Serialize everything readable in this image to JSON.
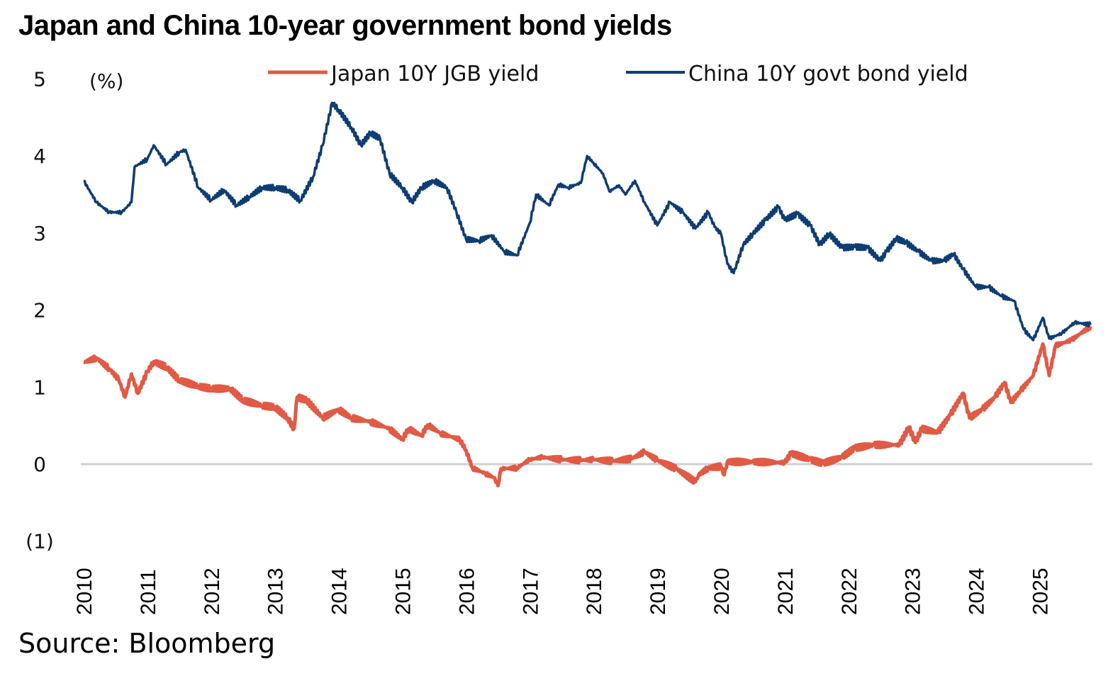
{
  "chart_data": {
    "type": "line",
    "title": "Japan and China 10-year government bond yields",
    "source": "Source: Bloomberg",
    "ylabel": "(%)",
    "xlabel": "",
    "ylim": [
      -1,
      5
    ],
    "xlim": [
      2010,
      2025.83
    ],
    "yticks": [
      5,
      4,
      3,
      2,
      1,
      0,
      -1
    ],
    "ytick_labels": [
      "5",
      "4",
      "3",
      "2",
      "1",
      "0",
      "(1)"
    ],
    "xticks": [
      2010,
      2011,
      2012,
      2013,
      2014,
      2015,
      2016,
      2017,
      2018,
      2019,
      2020,
      2021,
      2022,
      2023,
      2024,
      2025
    ],
    "xtick_labels": [
      "2010",
      "2011",
      "2012",
      "2013",
      "2014",
      "2015",
      "2016",
      "2017",
      "2018",
      "2019",
      "2020",
      "2021",
      "2022",
      "2023",
      "2024",
      "2025"
    ],
    "zero_line": true,
    "grid": false,
    "legend_position": "top",
    "series": [
      {
        "name": "Japan 10Y JGB yield",
        "color": "#E05A45",
        "x": [
          2010.0,
          2010.2,
          2010.4,
          2010.55,
          2010.65,
          2010.75,
          2010.85,
          2011.0,
          2011.1,
          2011.3,
          2011.5,
          2011.8,
          2012.0,
          2012.3,
          2012.5,
          2012.8,
          2013.0,
          2013.2,
          2013.3,
          2013.35,
          2013.5,
          2013.75,
          2014.0,
          2014.2,
          2014.5,
          2014.8,
          2015.0,
          2015.1,
          2015.3,
          2015.4,
          2015.6,
          2015.9,
          2016.0,
          2016.1,
          2016.3,
          2016.45,
          2016.5,
          2016.55,
          2016.8,
          2017.0,
          2017.2,
          2017.5,
          2017.8,
          2018.0,
          2018.3,
          2018.6,
          2018.8,
          2019.0,
          2019.3,
          2019.6,
          2019.65,
          2019.8,
          2020.0,
          2020.05,
          2020.1,
          2020.5,
          2021.0,
          2021.1,
          2021.4,
          2021.6,
          2021.9,
          2022.1,
          2022.4,
          2022.8,
          2022.95,
          2023.05,
          2023.15,
          2023.4,
          2023.6,
          2023.8,
          2023.9,
          2024.1,
          2024.3,
          2024.45,
          2024.55,
          2024.7,
          2024.9,
          2025.05,
          2025.15,
          2025.25,
          2025.5,
          2025.8
        ],
        "values": [
          1.32,
          1.38,
          1.24,
          1.1,
          0.87,
          1.17,
          0.92,
          1.2,
          1.33,
          1.26,
          1.09,
          1.01,
          0.98,
          0.98,
          0.83,
          0.76,
          0.74,
          0.6,
          0.46,
          0.87,
          0.83,
          0.6,
          0.71,
          0.6,
          0.55,
          0.46,
          0.32,
          0.46,
          0.37,
          0.51,
          0.4,
          0.32,
          0.18,
          -0.05,
          -0.12,
          -0.18,
          -0.28,
          -0.06,
          -0.05,
          0.06,
          0.09,
          0.06,
          0.05,
          0.06,
          0.04,
          0.07,
          0.16,
          0.05,
          -0.06,
          -0.23,
          -0.14,
          -0.05,
          -0.03,
          -0.14,
          0.03,
          0.03,
          0.02,
          0.14,
          0.06,
          0.01,
          0.09,
          0.21,
          0.25,
          0.25,
          0.48,
          0.28,
          0.46,
          0.41,
          0.64,
          0.92,
          0.6,
          0.71,
          0.87,
          1.06,
          0.8,
          0.95,
          1.15,
          1.56,
          1.15,
          1.54,
          1.61,
          1.79
        ]
      },
      {
        "name": "China 10Y govt bond yield",
        "color": "#0E3D73",
        "x": [
          2010.0,
          2010.2,
          2010.4,
          2010.6,
          2010.75,
          2010.8,
          2011.0,
          2011.1,
          2011.3,
          2011.5,
          2011.6,
          2011.8,
          2012.0,
          2012.2,
          2012.4,
          2012.6,
          2012.8,
          2013.0,
          2013.2,
          2013.4,
          2013.6,
          2013.75,
          2013.9,
          2014.0,
          2014.2,
          2014.35,
          2014.5,
          2014.65,
          2014.8,
          2015.0,
          2015.15,
          2015.3,
          2015.5,
          2015.7,
          2015.85,
          2016.0,
          2016.2,
          2016.4,
          2016.6,
          2016.8,
          2017.0,
          2017.1,
          2017.3,
          2017.45,
          2017.6,
          2017.8,
          2017.9,
          2018.0,
          2018.15,
          2018.25,
          2018.4,
          2018.5,
          2018.65,
          2018.8,
          2019.0,
          2019.2,
          2019.4,
          2019.6,
          2019.8,
          2019.9,
          2020.0,
          2020.1,
          2020.2,
          2020.35,
          2020.5,
          2020.7,
          2020.9,
          2021.0,
          2021.2,
          2021.4,
          2021.55,
          2021.7,
          2021.9,
          2022.1,
          2022.3,
          2022.5,
          2022.6,
          2022.75,
          2022.9,
          2023.1,
          2023.3,
          2023.5,
          2023.65,
          2023.8,
          2024.0,
          2024.2,
          2024.4,
          2024.6,
          2024.75,
          2024.9,
          2025.05,
          2025.15,
          2025.35,
          2025.55,
          2025.8
        ],
        "values": [
          3.68,
          3.4,
          3.27,
          3.27,
          3.4,
          3.86,
          3.96,
          4.14,
          3.89,
          4.05,
          4.08,
          3.59,
          3.43,
          3.56,
          3.36,
          3.47,
          3.59,
          3.59,
          3.56,
          3.42,
          3.73,
          4.14,
          4.69,
          4.6,
          4.37,
          4.14,
          4.3,
          4.23,
          3.77,
          3.59,
          3.4,
          3.59,
          3.68,
          3.59,
          3.27,
          2.92,
          2.9,
          2.97,
          2.76,
          2.71,
          3.13,
          3.5,
          3.36,
          3.63,
          3.59,
          3.65,
          4.0,
          3.91,
          3.77,
          3.54,
          3.62,
          3.5,
          3.68,
          3.4,
          3.1,
          3.4,
          3.27,
          3.06,
          3.27,
          3.08,
          2.99,
          2.6,
          2.48,
          2.85,
          2.99,
          3.17,
          3.34,
          3.17,
          3.25,
          3.1,
          2.85,
          2.99,
          2.81,
          2.82,
          2.81,
          2.64,
          2.76,
          2.93,
          2.88,
          2.76,
          2.64,
          2.64,
          2.73,
          2.53,
          2.3,
          2.3,
          2.18,
          2.12,
          1.75,
          1.61,
          1.9,
          1.63,
          1.7,
          1.84,
          1.81
        ]
      }
    ]
  }
}
